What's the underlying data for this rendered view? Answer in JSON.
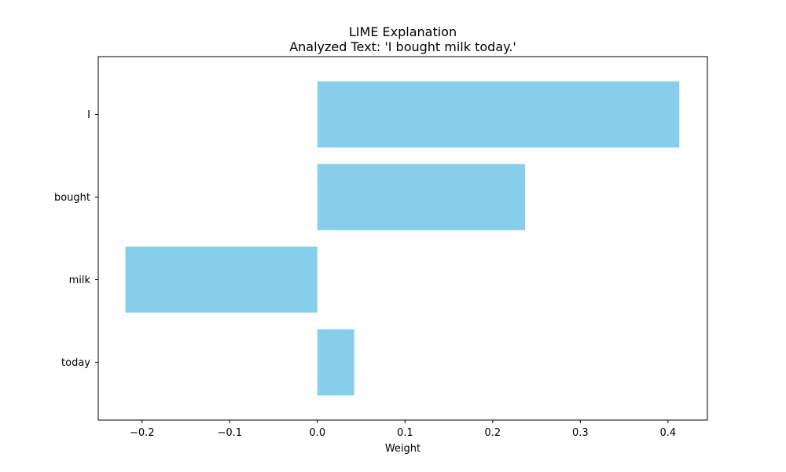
{
  "chart_data": {
    "type": "bar",
    "orientation": "horizontal",
    "title": "LIME Explanation",
    "subtitle": "Analyzed Text: 'I bought milk today.'",
    "xlabel": "Weight",
    "ylabel": "",
    "categories": [
      "I",
      "bought",
      "milk",
      "today"
    ],
    "values": [
      0.413,
      0.237,
      -0.219,
      0.042
    ],
    "xlim": [
      -0.25,
      0.445
    ],
    "xticks": [
      -0.2,
      -0.1,
      0.0,
      0.1,
      0.2,
      0.3,
      0.4
    ],
    "xtick_labels": [
      "−0.2",
      "−0.1",
      "0.0",
      "0.1",
      "0.2",
      "0.3",
      "0.4"
    ],
    "bar_color": "#87CEEB",
    "grid": false,
    "legend": "none"
  }
}
